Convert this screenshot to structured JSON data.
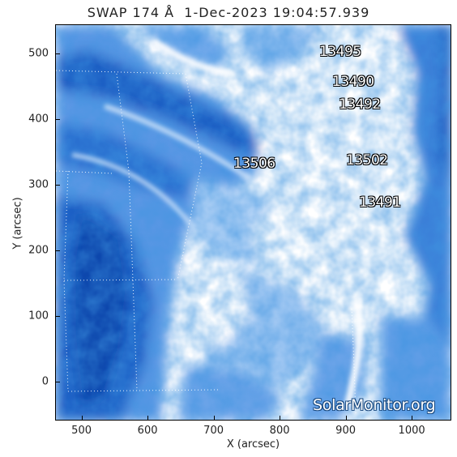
{
  "title": "SWAP 174 Å  1-Dec-2023 19:04:57.939",
  "x_axis": {
    "label": "X (arcsec)",
    "ticks": [
      "500",
      "600",
      "700",
      "800",
      "900",
      "1000"
    ],
    "range": [
      460,
      1060
    ]
  },
  "y_axis": {
    "label": "Y (arcsec)",
    "ticks": [
      "0",
      "100",
      "200",
      "300",
      "400",
      "500"
    ],
    "range": [
      -60,
      545
    ]
  },
  "regions": [
    {
      "number": "13495",
      "x": 860,
      "y": 515
    },
    {
      "number": "13490",
      "x": 880,
      "y": 470
    },
    {
      "number": "13492",
      "x": 890,
      "y": 435
    },
    {
      "number": "13506",
      "x": 730,
      "y": 345
    },
    {
      "number": "13502",
      "x": 900,
      "y": 350
    },
    {
      "number": "13491",
      "x": 920,
      "y": 285
    }
  ],
  "watermark": "SolarMonitor.org",
  "colors": {
    "image_dark": "#0e4fb8",
    "image_mid": "#4d8de0",
    "image_light": "#b8d6f6",
    "image_white": "#ffffff"
  }
}
